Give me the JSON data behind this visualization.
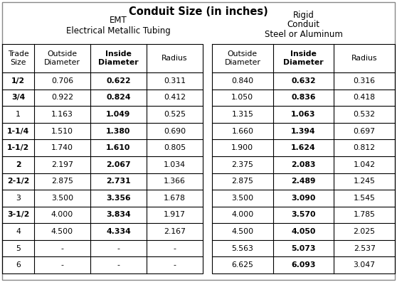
{
  "title": "Conduit Size (in inches)",
  "emt_header1": "EMT",
  "emt_header2": "Electrical Metallic Tubing",
  "rigid_header1": "Rigid",
  "rigid_header2": "Conduit",
  "rigid_header3": "Steel or Aluminum",
  "col_headers_emt": [
    "Outside\nDiameter",
    "Inside\nDiameter",
    "Radius"
  ],
  "col_headers_rigid": [
    "Outside\nDiameter",
    "Inside\nDiameter",
    "Radius"
  ],
  "trade_header": "Trade\nSize",
  "trade_sizes": [
    "1/2",
    "3/4",
    "1",
    "1-1/4",
    "1-1/2",
    "2",
    "2-1/2",
    "3",
    "3-1/2",
    "4",
    "5",
    "6"
  ],
  "emt_data": [
    [
      "0.706",
      "0.622",
      "0.311"
    ],
    [
      "0.922",
      "0.824",
      "0.412"
    ],
    [
      "1.163",
      "1.049",
      "0.525"
    ],
    [
      "1.510",
      "1.380",
      "0.690"
    ],
    [
      "1.740",
      "1.610",
      "0.805"
    ],
    [
      "2.197",
      "2.067",
      "1.034"
    ],
    [
      "2.875",
      "2.731",
      "1.366"
    ],
    [
      "3.500",
      "3.356",
      "1.678"
    ],
    [
      "4.000",
      "3.834",
      "1.917"
    ],
    [
      "4.500",
      "4.334",
      "2.167"
    ],
    [
      "-",
      "-",
      "-"
    ],
    [
      "-",
      "-",
      "-"
    ]
  ],
  "rigid_data": [
    [
      "0.840",
      "0.632",
      "0.316"
    ],
    [
      "1.050",
      "0.836",
      "0.418"
    ],
    [
      "1.315",
      "1.063",
      "0.532"
    ],
    [
      "1.660",
      "1.394",
      "0.697"
    ],
    [
      "1.900",
      "1.624",
      "0.812"
    ],
    [
      "2.375",
      "2.083",
      "1.042"
    ],
    [
      "2.875",
      "2.489",
      "1.245"
    ],
    [
      "3.500",
      "3.090",
      "1.545"
    ],
    [
      "4.000",
      "3.570",
      "1.785"
    ],
    [
      "4.500",
      "4.050",
      "2.025"
    ],
    [
      "5.563",
      "5.073",
      "2.537"
    ],
    [
      "6.625",
      "6.093",
      "3.047"
    ]
  ],
  "emt_inside_bold": [
    true,
    true,
    true,
    true,
    true,
    true,
    true,
    true,
    true,
    true,
    false,
    false
  ],
  "rigid_inside_bold": [
    true,
    true,
    true,
    true,
    true,
    true,
    true,
    true,
    true,
    true,
    true,
    true
  ],
  "trade_size_bold": [
    true,
    true,
    false,
    true,
    true,
    true,
    true,
    false,
    true,
    false,
    false,
    false
  ],
  "bg_color": "#ffffff",
  "border_color": "#000000",
  "text_color": "#000000",
  "outer_border_color": "#888888",
  "title_fontsize": 10.5,
  "section_header_fontsize": 8.5,
  "col_header_fontsize": 7.8,
  "cell_fontsize": 7.8
}
